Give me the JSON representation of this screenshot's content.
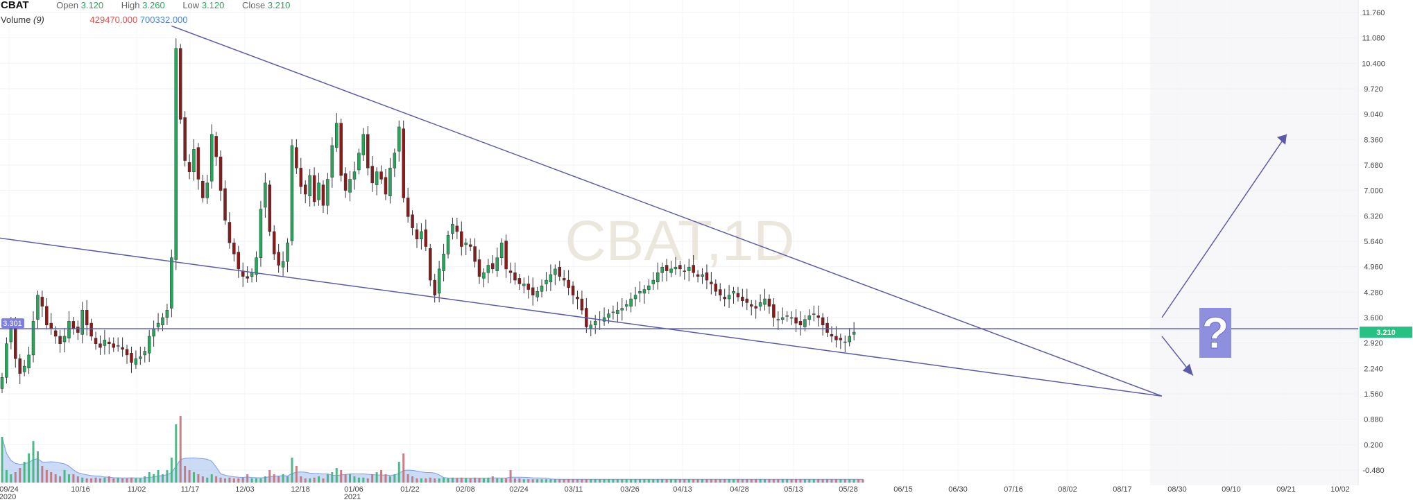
{
  "header": {
    "symbol": "CBAT",
    "open_label": "Open",
    "open": "3.120",
    "high_label": "High",
    "high": "3.260",
    "low_label": "Low",
    "low": "3.120",
    "close_label": "Close",
    "close": "3.210",
    "volume_label": "Volume",
    "volume_period": "(9)",
    "volume_value": "429470.000",
    "volume_ma": "700332.000"
  },
  "chart_data": {
    "type": "candlestick",
    "watermark": "CBAT,1D",
    "y_ticks": [
      "11.760",
      "11.080",
      "10.400",
      "9.720",
      "9.040",
      "8.360",
      "7.680",
      "7.000",
      "6.320",
      "5.640",
      "4.960",
      "4.280",
      "3.600",
      "2.920",
      "2.240",
      "1.560",
      "0.880",
      "0.200",
      "-0.480"
    ],
    "ylim": [
      -0.48,
      11.76
    ],
    "x_ticks": [
      {
        "label": "09/24",
        "sub": "2020"
      },
      {
        "label": "10/16"
      },
      {
        "label": "11/02"
      },
      {
        "label": "11/17"
      },
      {
        "label": "12/03"
      },
      {
        "label": "12/18"
      },
      {
        "label": "01/06",
        "sub": "2021"
      },
      {
        "label": "01/22"
      },
      {
        "label": "02/08"
      },
      {
        "label": "02/24"
      },
      {
        "label": "03/11"
      },
      {
        "label": "03/26"
      },
      {
        "label": "04/13"
      },
      {
        "label": "04/28"
      },
      {
        "label": "05/13"
      },
      {
        "label": "05/28"
      },
      {
        "label": "06/15"
      },
      {
        "label": "06/30"
      },
      {
        "label": "07/16"
      },
      {
        "label": "08/02"
      },
      {
        "label": "08/17"
      },
      {
        "label": "08/30"
      },
      {
        "label": "09/10"
      },
      {
        "label": "09/21"
      },
      {
        "label": "10/02"
      }
    ],
    "closes": [
      2.0,
      2.9,
      3.4,
      2.5,
      2.1,
      2.3,
      2.6,
      3.5,
      4.2,
      3.9,
      3.4,
      3.3,
      3.1,
      2.9,
      3.1,
      3.5,
      3.3,
      3.2,
      3.8,
      3.4,
      3.1,
      2.9,
      2.8,
      3.0,
      2.9,
      2.8,
      2.85,
      2.75,
      2.6,
      2.4,
      2.5,
      2.55,
      2.7,
      3.1,
      3.3,
      3.45,
      3.6,
      3.8,
      5.2,
      10.8,
      8.9,
      7.8,
      7.5,
      8.1,
      7.3,
      6.8,
      7.2,
      8.5,
      7.9,
      7.0,
      6.2,
      5.6,
      5.3,
      4.9,
      4.7,
      4.65,
      4.8,
      5.2,
      6.5,
      7.2,
      5.9,
      5.3,
      5.0,
      5.1,
      5.6,
      8.2,
      7.6,
      7.1,
      6.9,
      7.4,
      6.7,
      7.2,
      6.6,
      7.3,
      8.2,
      8.8,
      7.4,
      7.0,
      7.3,
      7.5,
      8.0,
      8.5,
      7.6,
      7.2,
      7.5,
      7.3,
      6.9,
      7.6,
      8.0,
      8.7,
      6.8,
      6.3,
      6.0,
      5.7,
      5.9,
      5.5,
      4.6,
      4.2,
      4.9,
      5.3,
      5.8,
      6.1,
      5.9,
      5.5,
      5.6,
      5.5,
      5.1,
      4.7,
      4.8,
      5.0,
      4.9,
      5.2,
      5.6,
      4.9,
      4.8,
      4.6,
      4.5,
      4.5,
      4.35,
      4.2,
      4.3,
      4.45,
      4.6,
      4.75,
      4.9,
      4.7,
      4.6,
      4.4,
      4.2,
      4.1,
      3.8,
      3.35,
      3.4,
      3.5,
      3.55,
      3.6,
      3.7,
      3.75,
      3.8,
      3.85,
      3.95,
      4.1,
      4.2,
      4.3,
      4.35,
      4.45,
      4.6,
      4.8,
      4.95,
      4.85,
      4.9,
      4.95,
      4.9,
      4.85,
      4.95,
      4.8,
      4.7,
      4.75,
      4.6,
      4.5,
      4.3,
      4.2,
      4.1,
      4.2,
      4.3,
      4.15,
      4.05,
      4.0,
      3.9,
      3.85,
      4.0,
      4.1,
      3.9,
      3.6,
      3.55,
      3.6,
      3.65,
      3.6,
      3.45,
      3.4,
      3.55,
      3.65,
      3.7,
      3.6,
      3.4,
      3.2,
      3.1,
      3.0,
      3.0,
      2.95,
      3.1,
      3.21
    ],
    "volumes": [
      1.1,
      0.3,
      0.2,
      0.25,
      0.35,
      0.5,
      0.7,
      1.0,
      0.75,
      0.4,
      0.3,
      0.25,
      0.2,
      0.15,
      0.3,
      0.2,
      0.2,
      0.15,
      0.12,
      0.1,
      0.1,
      0.12,
      0.1,
      0.12,
      0.15,
      0.1,
      0.12,
      0.1,
      0.1,
      0.12,
      0.1,
      0.1,
      0.15,
      0.25,
      0.2,
      0.3,
      0.2,
      0.3,
      0.6,
      1.4,
      1.6,
      0.4,
      0.3,
      0.25,
      0.2,
      0.15,
      0.12,
      0.2,
      0.15,
      0.12,
      0.1,
      0.12,
      0.1,
      0.1,
      0.12,
      0.2,
      0.1,
      0.1,
      0.1,
      0.15,
      0.3,
      0.2,
      0.15,
      0.2,
      0.15,
      0.6,
      0.4,
      0.15,
      0.1,
      0.1,
      0.12,
      0.15,
      0.1,
      0.2,
      0.25,
      0.35,
      0.3,
      0.2,
      0.2,
      0.15,
      0.12,
      0.12,
      0.1,
      0.2,
      0.25,
      0.3,
      0.2,
      0.15,
      0.2,
      0.5,
      0.7,
      0.2,
      0.15,
      0.1,
      0.1,
      0.1,
      0.12,
      0.1,
      0.1,
      0.12,
      0.1,
      0.12,
      0.1,
      0.12,
      0.1,
      0.1,
      0.12,
      0.1,
      0.1,
      0.12,
      0.15,
      0.1,
      0.1,
      0.1,
      0.3,
      0.1,
      0.1,
      0.08,
      0.08,
      0.08,
      0.08,
      0.08,
      0.08,
      0.08,
      0.08,
      0.08,
      0.08,
      0.08,
      0.08,
      0.08,
      0.08,
      0.08,
      0.08,
      0.08,
      0.08,
      0.08,
      0.08,
      0.08,
      0.08,
      0.08,
      0.08,
      0.08,
      0.08,
      0.08,
      0.08,
      0.08,
      0.08,
      0.08,
      0.08,
      0.08,
      0.08,
      0.08,
      0.08,
      0.08,
      0.08,
      0.08,
      0.08,
      0.08,
      0.08,
      0.08,
      0.08,
      0.08,
      0.08,
      0.08,
      0.08,
      0.08,
      0.08,
      0.08,
      0.08,
      0.08,
      0.08,
      0.08,
      0.08,
      0.08,
      0.08,
      0.08,
      0.08,
      0.08,
      0.08,
      0.08,
      0.08,
      0.08,
      0.08,
      0.08,
      0.08,
      0.08,
      0.08,
      0.08,
      0.08,
      0.08,
      0.08,
      0.08,
      0.08,
      0.08
    ],
    "wedge_upper": [
      {
        "bar": 38,
        "price": 11.4
      },
      {
        "bar": 260,
        "price": 1.5
      }
    ],
    "wedge_lower": [
      {
        "bar": -2,
        "price": 5.75
      },
      {
        "bar": 260,
        "price": 1.5
      }
    ],
    "horizontal_level": 3.301,
    "horizontal_level_label": "3.301",
    "last_price_label": "3.210",
    "question_mark": "?",
    "colors": {
      "up": "#26a65b",
      "down": "#8b1a1a",
      "trendline": "#5b5baa",
      "last_price": "#26c281",
      "volume_ma_fill": "#a9c3ee",
      "question_box": "#8f8fe0"
    }
  }
}
